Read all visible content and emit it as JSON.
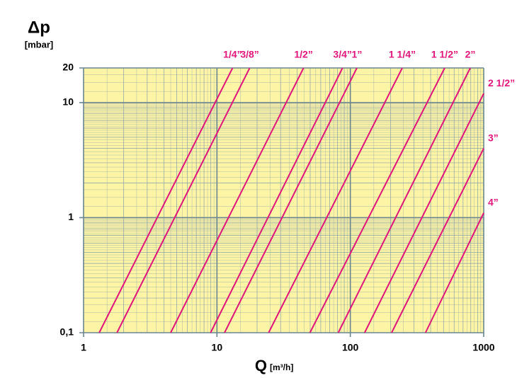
{
  "chart_data": {
    "type": "line",
    "log_x": true,
    "log_y": true,
    "grid": true,
    "y_label": "Δp",
    "y_unit": "[mbar]",
    "x_label": "Q",
    "x_unit": "[m³/h]",
    "xlim": [
      1,
      1000
    ],
    "ylim": [
      0.1,
      20
    ],
    "xticks": [
      1,
      10,
      100,
      1000
    ],
    "yticks": [
      {
        "value": 0.1,
        "label": "0,1"
      },
      1,
      10,
      20
    ],
    "background": "#fdf4a6",
    "series": [
      {
        "name": "1/4”",
        "color": "#e2157b",
        "x": [
          1.31,
          13.1
        ],
        "values": [
          0.1,
          20
        ]
      },
      {
        "name": "3/8”",
        "color": "#e2157b",
        "x": [
          1.78,
          17.6
        ],
        "values": [
          0.1,
          20
        ]
      },
      {
        "name": "1/2”",
        "color": "#e2157b",
        "x": [
          4.5,
          44.6
        ],
        "values": [
          0.1,
          20
        ]
      },
      {
        "name": "3/4”",
        "color": "#e2157b",
        "x": [
          8.96,
          87.4
        ],
        "values": [
          0.1,
          20
        ]
      },
      {
        "name": "1”",
        "color": "#e2157b",
        "x": [
          11.4,
          112
        ],
        "values": [
          0.1,
          20
        ]
      },
      {
        "name": "1 1/4”",
        "color": "#e2157b",
        "x": [
          24.4,
          245
        ],
        "values": [
          0.1,
          20
        ]
      },
      {
        "name": "1 1/2”",
        "color": "#e2157b",
        "x": [
          49.8,
          510
        ],
        "values": [
          0.1,
          20
        ]
      },
      {
        "name": "2”",
        "color": "#e2157b",
        "x": [
          81.2,
          793
        ],
        "values": [
          0.1,
          20
        ]
      },
      {
        "name": "2 1/2”",
        "color": "#e2157b",
        "x": [
          128,
          1000
        ],
        "values": [
          0.1,
          12
        ]
      },
      {
        "name": "3”",
        "color": "#e2157b",
        "x": [
          204,
          1000
        ],
        "values": [
          0.1,
          4
        ]
      },
      {
        "name": "4”",
        "color": "#e2157b",
        "x": [
          366,
          1000
        ],
        "values": [
          0.1,
          1.1
        ]
      }
    ]
  }
}
